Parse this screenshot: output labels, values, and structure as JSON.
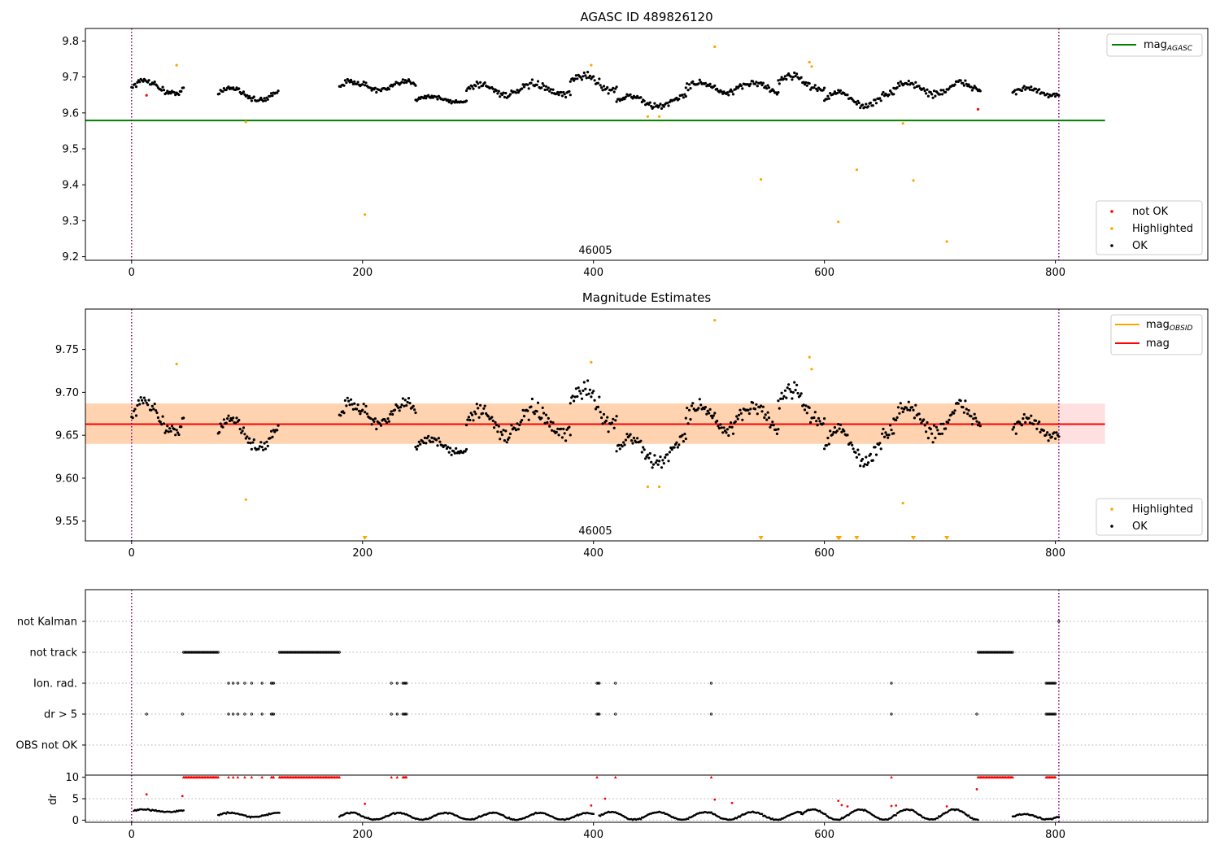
{
  "chart_data": [
    {
      "type": "scatter",
      "title": "AGASC ID 489826120",
      "xlim": [
        -40,
        932
      ],
      "ylim": [
        9.19,
        9.835
      ],
      "xticks": [
        0,
        200,
        400,
        600,
        800
      ],
      "xtick_labels": [
        "0",
        "200",
        "400",
        "600",
        "800"
      ],
      "yticks": [
        9.2,
        9.3,
        9.4,
        9.5,
        9.6,
        9.7,
        9.8
      ],
      "ytick_labels": [
        "9.2",
        "9.3",
        "9.4",
        "9.5",
        "9.6",
        "9.7",
        "9.8"
      ],
      "obsid_label": "46005",
      "obsid_x": 400,
      "vlines": [
        0,
        803
      ],
      "hline": {
        "y": 9.579,
        "x_range": [
          -40,
          843
        ],
        "color": "#008000"
      },
      "legend_top": [
        {
          "label": "mag",
          "subscript": "AGASC",
          "color": "#008000"
        }
      ],
      "legend_bottom": [
        {
          "label": "not OK",
          "color": "#ff0000"
        },
        {
          "label": "Highlighted",
          "color": "#ffa500"
        },
        {
          "label": "OK",
          "color": "#000000"
        }
      ],
      "segments": [
        {
          "x0": 0,
          "x1": 45,
          "center": 9.672,
          "amp": 0.018,
          "noise": 0.008
        },
        {
          "x0": 75,
          "x1": 127,
          "center": 9.652,
          "amp": 0.018,
          "noise": 0.008
        },
        {
          "x0": 180,
          "x1": 246,
          "center": 9.675,
          "amp": 0.012,
          "noise": 0.008
        },
        {
          "x0": 246,
          "x1": 290,
          "center": 9.638,
          "amp": 0.008,
          "noise": 0.006
        },
        {
          "x0": 290,
          "x1": 380,
          "center": 9.665,
          "amp": 0.015,
          "noise": 0.009
        },
        {
          "x0": 380,
          "x1": 420,
          "center": 9.685,
          "amp": 0.02,
          "noise": 0.01
        },
        {
          "x0": 420,
          "x1": 480,
          "center": 9.632,
          "amp": 0.015,
          "noise": 0.008
        },
        {
          "x0": 480,
          "x1": 560,
          "center": 9.67,
          "amp": 0.015,
          "noise": 0.009
        },
        {
          "x0": 560,
          "x1": 600,
          "center": 9.685,
          "amp": 0.02,
          "noise": 0.01
        },
        {
          "x0": 600,
          "x1": 660,
          "center": 9.638,
          "amp": 0.018,
          "noise": 0.008
        },
        {
          "x0": 660,
          "x1": 735,
          "center": 9.668,
          "amp": 0.015,
          "noise": 0.01
        },
        {
          "x0": 763,
          "x1": 803,
          "center": 9.658,
          "amp": 0.01,
          "noise": 0.007
        }
      ],
      "highlighted": [
        [
          39,
          9.733
        ],
        [
          99,
          9.575
        ],
        [
          202,
          9.317
        ],
        [
          398,
          9.733
        ],
        [
          447,
          9.59
        ],
        [
          457,
          9.59
        ],
        [
          505,
          9.784
        ],
        [
          545,
          9.415
        ],
        [
          587,
          9.741
        ],
        [
          589,
          9.729
        ],
        [
          612,
          9.297
        ],
        [
          628,
          9.442
        ],
        [
          668,
          9.571
        ],
        [
          677,
          9.412
        ],
        [
          706,
          9.242
        ]
      ],
      "not_ok": [
        [
          13,
          9.649
        ],
        [
          733,
          9.61
        ]
      ]
    },
    {
      "type": "scatter",
      "title": "Magnitude Estimates",
      "xlim": [
        -40,
        932
      ],
      "ylim": [
        9.527,
        9.797
      ],
      "xticks": [
        0,
        200,
        400,
        600,
        800
      ],
      "xtick_labels": [
        "0",
        "200",
        "400",
        "600",
        "800"
      ],
      "yticks": [
        9.55,
        9.6,
        9.65,
        9.7,
        9.75
      ],
      "ytick_labels": [
        "9.55",
        "9.60",
        "9.65",
        "9.70",
        "9.75"
      ],
      "obsid_label": "46005",
      "obsid_x": 400,
      "vlines": [
        0,
        803
      ],
      "mag_line": {
        "y": 9.663,
        "x_range": [
          -40,
          843
        ],
        "color": "#ff0000"
      },
      "mag_obsid_line": {
        "y": 9.663,
        "x_range": [
          -40,
          803
        ],
        "color": "#ffa500"
      },
      "band_obsid": {
        "y0": 9.64,
        "y1": 9.687,
        "x_range": [
          -40,
          803
        ],
        "color": "#ffa500"
      },
      "band_mag": {
        "y0": 9.64,
        "y1": 9.687,
        "x_range": [
          -40,
          843
        ],
        "color": "#ff0000"
      },
      "legend_top": [
        {
          "label": "mag",
          "subscript": "OBSID",
          "color": "#ffa500"
        },
        {
          "label": "mag",
          "subscript": "",
          "color": "#ff0000"
        }
      ],
      "legend_bottom": [
        {
          "label": "Highlighted",
          "color": "#ffa500"
        },
        {
          "label": "OK",
          "color": "#000000"
        }
      ],
      "highlighted": [
        [
          39,
          9.733
        ],
        [
          99,
          9.575
        ],
        [
          398,
          9.735
        ],
        [
          447,
          9.59
        ],
        [
          457,
          9.59
        ],
        [
          505,
          9.784
        ],
        [
          587,
          9.741
        ],
        [
          589,
          9.727
        ],
        [
          668,
          9.571
        ]
      ],
      "below_range_markers": [
        202,
        545,
        612,
        613,
        628,
        677,
        706
      ]
    },
    {
      "type": "scatter",
      "title": "",
      "xlim": [
        -40,
        932
      ],
      "categories": [
        "not Kalman",
        "not track",
        "Ion. rad.",
        "dr > 5",
        "OBS not OK"
      ],
      "vlines": [
        0,
        803
      ],
      "flag_runs": {
        "not Kalman": [],
        "not track": [
          [
            45,
            75
          ],
          [
            128,
            180
          ],
          [
            733,
            763
          ]
        ],
        "Ion. rad.": [
          [
            84,
            84
          ],
          [
            88,
            88
          ],
          [
            92,
            92
          ],
          [
            98,
            98
          ],
          [
            104,
            104
          ],
          [
            113,
            113
          ],
          [
            121,
            123
          ],
          [
            225,
            225
          ],
          [
            230,
            230
          ],
          [
            235,
            238
          ],
          [
            403,
            405
          ],
          [
            419,
            419
          ],
          [
            502,
            502
          ],
          [
            658,
            658
          ],
          [
            792,
            800
          ]
        ],
        "dr > 5": [
          [
            13,
            13
          ],
          [
            44,
            44
          ],
          [
            84,
            84
          ],
          [
            88,
            88
          ],
          [
            92,
            92
          ],
          [
            98,
            98
          ],
          [
            104,
            104
          ],
          [
            113,
            113
          ],
          [
            121,
            123
          ],
          [
            225,
            225
          ],
          [
            230,
            230
          ],
          [
            235,
            238
          ],
          [
            403,
            405
          ],
          [
            419,
            419
          ],
          [
            502,
            502
          ],
          [
            658,
            658
          ],
          [
            732,
            732
          ],
          [
            792,
            800
          ]
        ],
        "OBS not OK": []
      },
      "flag_singletons": {
        "not Kalman": [
          803
        ]
      }
    },
    {
      "type": "scatter",
      "ylabel": "dr",
      "xlim": [
        -40,
        932
      ],
      "ylim": [
        -0.5,
        10.5
      ],
      "xticks": [
        0,
        200,
        400,
        600,
        800
      ],
      "xtick_labels": [
        "0",
        "200",
        "400",
        "600",
        "800"
      ],
      "yticks": [
        0,
        5,
        10
      ],
      "ytick_labels": [
        "0",
        "5",
        "10"
      ],
      "vlines": [
        0,
        803
      ],
      "capped_value": 10,
      "capped_runs": [
        [
          45,
          75
        ],
        [
          84,
          84
        ],
        [
          88,
          88
        ],
        [
          92,
          92
        ],
        [
          98,
          98
        ],
        [
          104,
          104
        ],
        [
          113,
          113
        ],
        [
          121,
          123
        ],
        [
          128,
          180
        ],
        [
          225,
          225
        ],
        [
          230,
          230
        ],
        [
          235,
          238
        ],
        [
          403,
          403
        ],
        [
          419,
          419
        ],
        [
          502,
          502
        ],
        [
          658,
          658
        ],
        [
          733,
          763
        ],
        [
          792,
          800
        ]
      ],
      "dr_segments": [
        {
          "x0": 2,
          "x1": 45,
          "base": 2.2,
          "amp": 0.25
        },
        {
          "x0": 75,
          "x1": 128,
          "base": 1.2,
          "amp": 0.5
        },
        {
          "x0": 180,
          "x1": 400,
          "base": 0.9,
          "amp": 0.8
        },
        {
          "x0": 405,
          "x1": 580,
          "base": 1.0,
          "amp": 0.9
        },
        {
          "x0": 580,
          "x1": 733,
          "base": 1.3,
          "amp": 1.2
        },
        {
          "x0": 763,
          "x1": 803,
          "base": 0.8,
          "amp": 0.6
        }
      ],
      "red_points": [
        [
          13,
          6.0
        ],
        [
          44,
          5.6
        ],
        [
          202,
          3.8
        ],
        [
          398,
          3.4
        ],
        [
          410,
          5.0
        ],
        [
          505,
          4.8
        ],
        [
          520,
          4.0
        ],
        [
          612,
          4.5
        ],
        [
          615,
          3.5
        ],
        [
          620,
          3.2
        ],
        [
          658,
          3.3
        ],
        [
          662,
          3.4
        ],
        [
          706,
          3.2
        ],
        [
          732,
          7.2
        ]
      ]
    }
  ]
}
